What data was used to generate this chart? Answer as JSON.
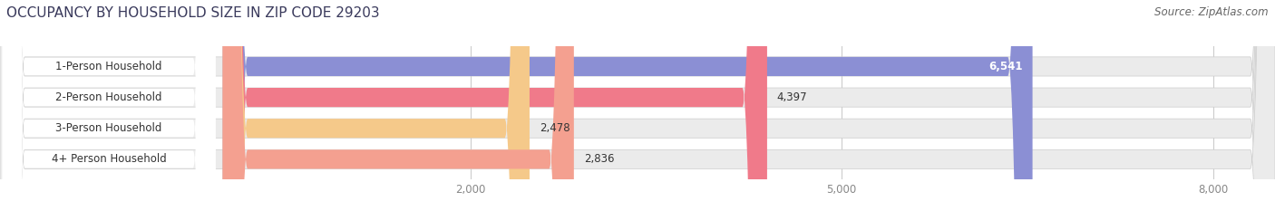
{
  "title": "OCCUPANCY BY HOUSEHOLD SIZE IN ZIP CODE 29203",
  "source": "Source: ZipAtlas.com",
  "categories": [
    "1-Person Household",
    "2-Person Household",
    "3-Person Household",
    "4+ Person Household"
  ],
  "values": [
    6541,
    4397,
    2478,
    2836
  ],
  "bar_colors": [
    "#8b8fd4",
    "#f07a8a",
    "#f5c98a",
    "#f4a090"
  ],
  "bar_bg_color": "#ebebeb",
  "value_label_colors": [
    "#ffffff",
    "#333333",
    "#333333",
    "#333333"
  ],
  "xlim_data": [
    0,
    8500
  ],
  "xticks": [
    2000,
    5000,
    8000
  ],
  "title_fontsize": 11,
  "source_fontsize": 8.5,
  "bar_label_fontsize": 8.5,
  "tick_label_fontsize": 8.5,
  "category_fontsize": 8.5,
  "figsize": [
    14.06,
    2.33
  ],
  "dpi": 100
}
